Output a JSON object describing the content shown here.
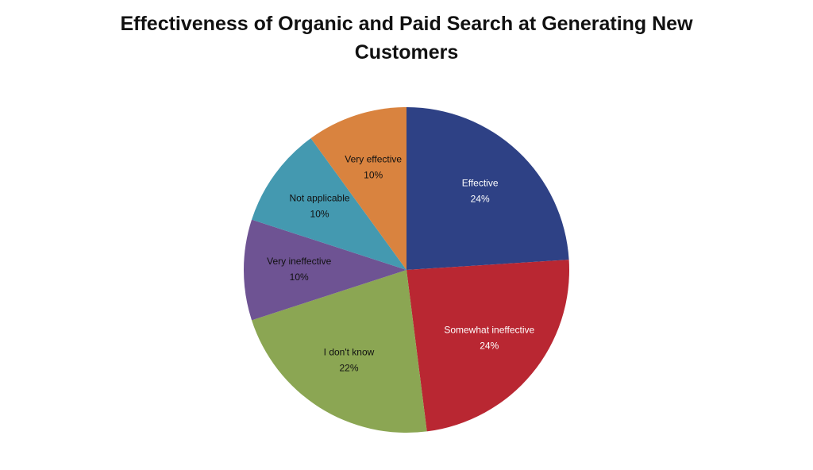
{
  "chart_data": {
    "type": "pie",
    "title": "Effectiveness of Organic and Paid Search at Generating New Customers",
    "categories": [
      "Effective",
      "Somewhat ineffective",
      "I don't know",
      "Very ineffective",
      "Not applicable",
      "Very effective"
    ],
    "values": [
      24,
      24,
      22,
      10,
      10,
      10
    ],
    "value_labels": [
      "24%",
      "24%",
      "22%",
      "10%",
      "10%",
      "10%"
    ],
    "colors": [
      "#2e4185",
      "#b92732",
      "#8ba653",
      "#6e5393",
      "#4499b0",
      "#d9833f"
    ]
  }
}
